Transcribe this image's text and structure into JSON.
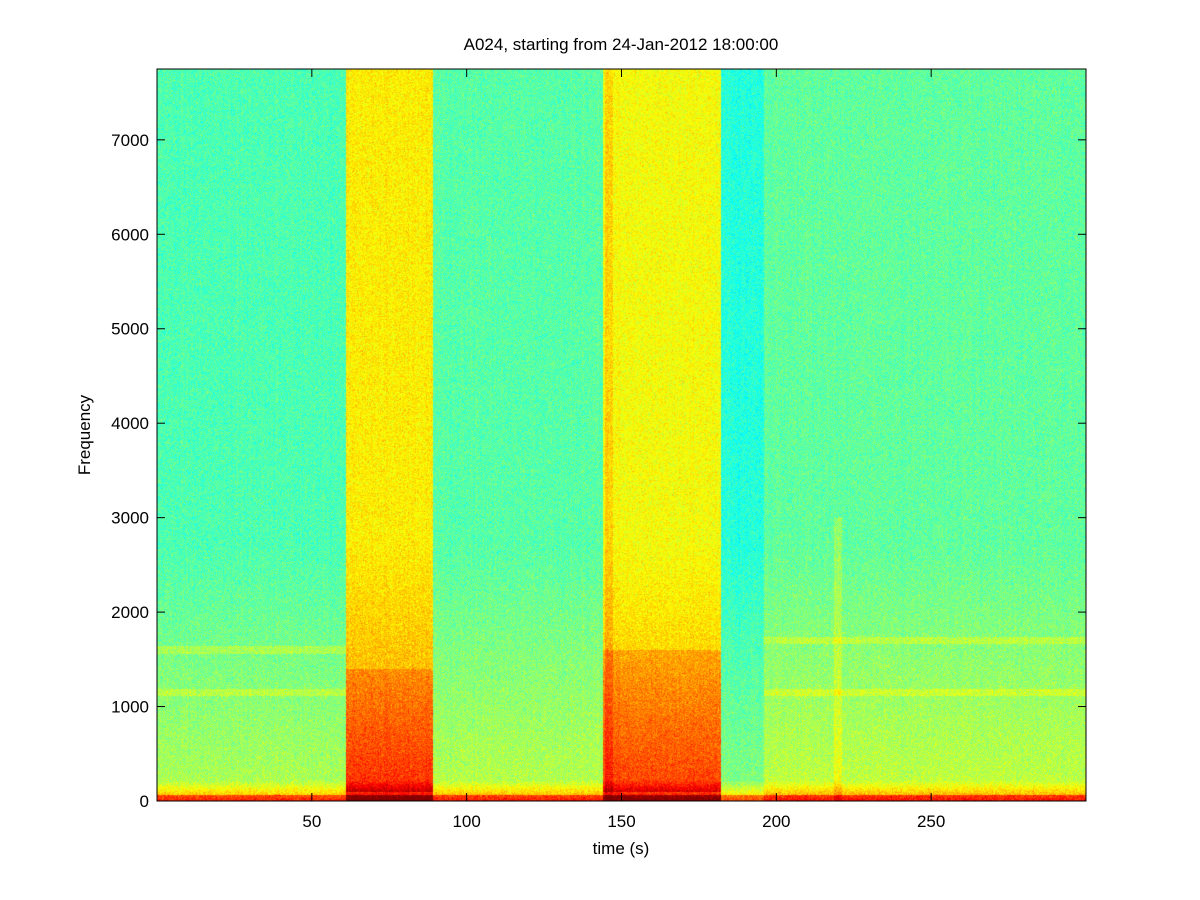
{
  "chart_data": {
    "type": "heatmap",
    "title": "A024, starting from 24-Jan-2012 18:00:00",
    "xlabel": "time (s)",
    "ylabel": "Frequency",
    "xlim": [
      0,
      300
    ],
    "ylim": [
      0,
      7750
    ],
    "xticks": [
      50,
      100,
      150,
      200,
      250
    ],
    "yticks": [
      0,
      1000,
      2000,
      3000,
      4000,
      5000,
      6000,
      7000
    ],
    "grid": false,
    "colormap": "jet",
    "colors": {
      "low": "#00bfff",
      "mid": "#80ff80",
      "high": "#ffff00",
      "peak": "#cc0000"
    },
    "time_segments": [
      {
        "x": [
          0,
          61
        ],
        "level": 0.45
      },
      {
        "x": [
          61,
          89
        ],
        "level": 0.64
      },
      {
        "x": [
          89,
          144
        ],
        "level": 0.46
      },
      {
        "x": [
          144,
          182
        ],
        "level": 0.62
      },
      {
        "x": [
          182,
          196
        ],
        "level": 0.41
      },
      {
        "x": [
          196,
          300
        ],
        "level": 0.47
      }
    ],
    "strong_low_band_segments": [
      {
        "x": [
          61,
          89
        ],
        "y": [
          100,
          1400
        ]
      },
      {
        "x": [
          144,
          182
        ],
        "y": [
          100,
          1600
        ]
      }
    ],
    "horizontal_bands": [
      {
        "y": 1600,
        "x": [
          0,
          61
        ]
      },
      {
        "y": 1150,
        "x": [
          0,
          61
        ]
      },
      {
        "y": 1700,
        "x": [
          196,
          300
        ]
      },
      {
        "y": 1150,
        "x": [
          196,
          300
        ]
      }
    ],
    "narrow_vertical_lines": [
      {
        "x": 146,
        "y": [
          0,
          7750
        ]
      },
      {
        "x": 220,
        "y": [
          0,
          3000
        ]
      }
    ]
  }
}
